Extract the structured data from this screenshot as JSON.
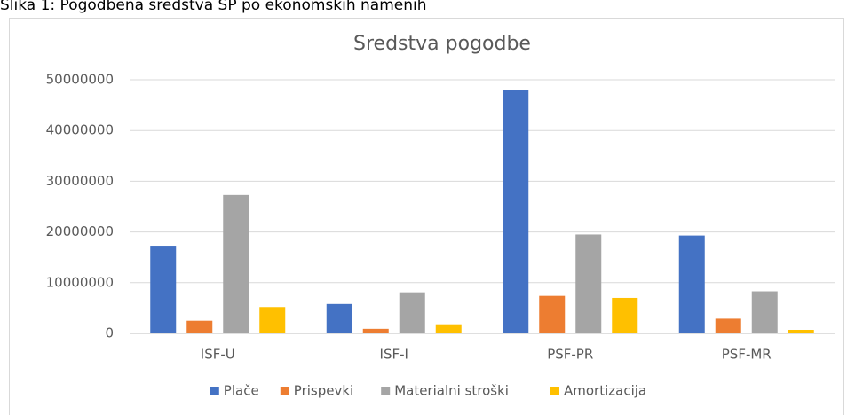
{
  "caption": "Slika 1: Pogodbena sredstva SP po ekonomskih namenih",
  "chart_data": {
    "type": "bar",
    "title": "Sredstva pogodbe",
    "categories": [
      "ISF-U",
      "ISF-I",
      "PSF-PR",
      "PSF-MR"
    ],
    "series": [
      {
        "name": "Plače",
        "color": "#4472c4",
        "values": [
          17300000,
          5800000,
          48000000,
          19300000
        ]
      },
      {
        "name": "Prispevki",
        "color": "#ed7d31",
        "values": [
          2500000,
          900000,
          7400000,
          2900000
        ]
      },
      {
        "name": "Materialni stroški",
        "color": "#a5a5a5",
        "values": [
          27300000,
          8100000,
          19500000,
          8300000
        ]
      },
      {
        "name": "Amortizacija",
        "color": "#ffc000",
        "values": [
          5200000,
          1800000,
          7000000,
          700000
        ]
      }
    ],
    "ylim": [
      0,
      50000000
    ],
    "yticks": [
      0,
      10000000,
      20000000,
      30000000,
      40000000,
      50000000
    ],
    "grid": true,
    "legend": "bottom"
  }
}
